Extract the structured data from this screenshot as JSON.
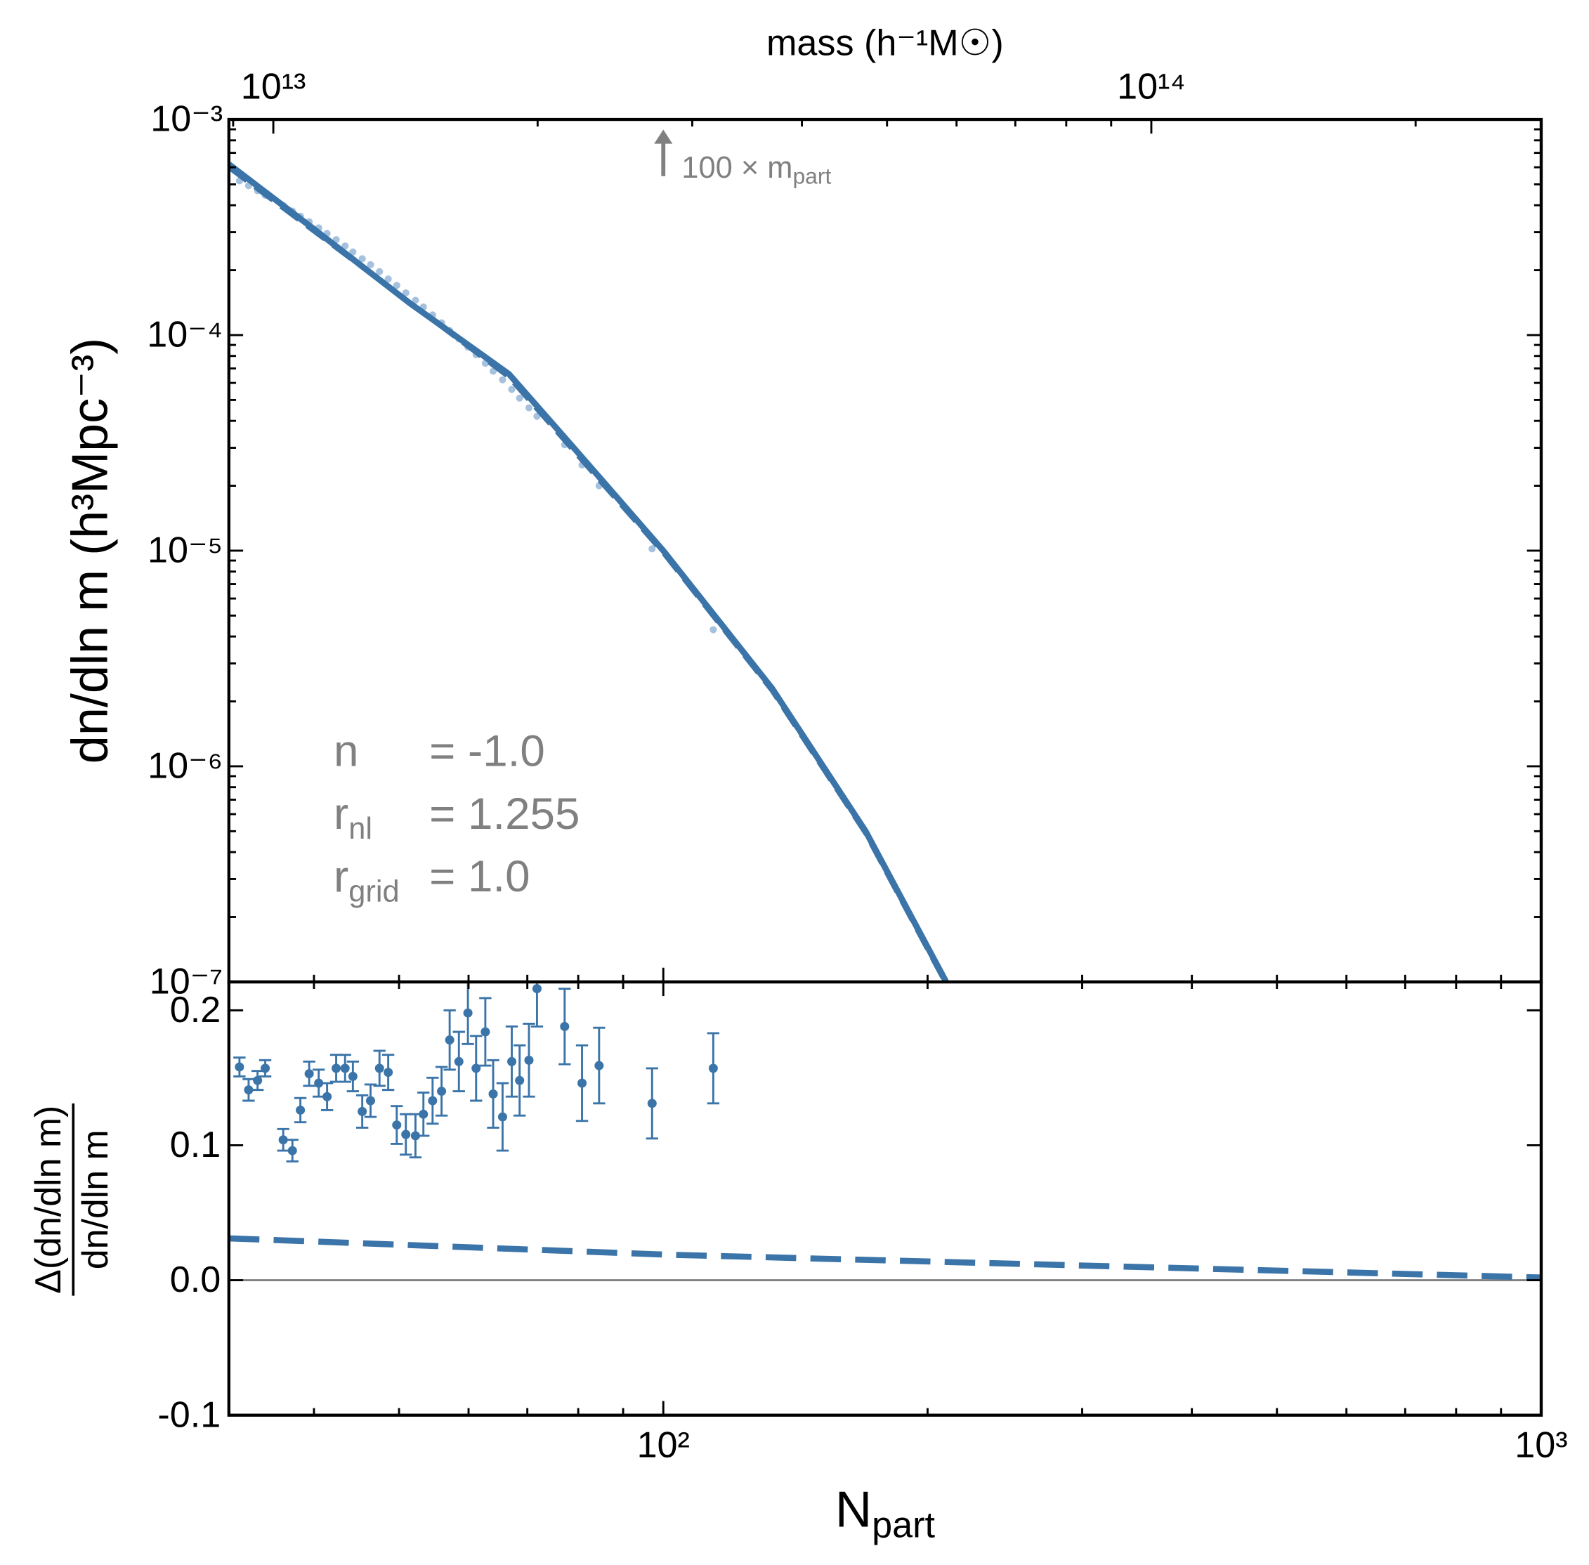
{
  "chart_data": [
    {
      "type": "line",
      "ylabel": "dn/dln m (h³Mpc⁻³)",
      "x2label": "mass (h⁻¹M☉)",
      "xscale": "log",
      "yscale": "log",
      "xlim": [
        32,
        1000
      ],
      "ylim": [
        1e-07,
        0.001
      ],
      "yticks": [
        {
          "value": 0.001,
          "label": "10⁻³"
        },
        {
          "value": 0.0001,
          "label": "10⁻⁴"
        },
        {
          "value": 1e-05,
          "label": "10⁻⁵"
        },
        {
          "value": 1e-06,
          "label": "10⁻⁶"
        },
        {
          "value": 1e-07,
          "label": "10⁻⁷"
        }
      ],
      "x2lim": [
        8900000000000.0,
        278000000000000.0
      ],
      "x2ticks": [
        {
          "value": 10000000000000.0,
          "label": "10¹³"
        },
        {
          "value": 100000000000000.0,
          "label": "10¹⁴"
        }
      ],
      "series": [
        {
          "kind": "scatter",
          "color": "#8fb2d4",
          "x": [
            32.9,
            33.7,
            34.5,
            35.2,
            36.9,
            37.8,
            38.6,
            39.5,
            40.5,
            41.4,
            42.4,
            43.4,
            44.3,
            45.4,
            46.4,
            47.5,
            48.6,
            49.7,
            50.9,
            52.2,
            53.3,
            54.6,
            55.9,
            57.1,
            58.5,
            59.9,
            61.2,
            62.7,
            64.0,
            65.6,
            67.2,
            68.6,
            70.3,
            71.8,
            77.2,
            80.8,
            84.5,
            97.1,
            114.0
          ],
          "values": [
            0.000519,
            0.000493,
            0.000467,
            0.000445,
            0.000399,
            0.000376,
            0.000356,
            0.000335,
            0.000314,
            0.000296,
            0.000277,
            0.000259,
            0.000243,
            0.000226,
            0.000212,
            0.000197,
            0.000182,
            0.00017,
            0.000157,
            0.000145,
            0.000135,
            0.000124,
            0.000114,
            0.000105,
            9.6e-05,
            8.8e-05,
            8.1e-05,
            7.4e-05,
            6.8e-05,
            6.2e-05,
            5.6e-05,
            5.1e-05,
            4.6e-05,
            4.2e-05,
            3.1e-05,
            2.5e-05,
            2e-05,
            1.02e-05,
            4.3e-06
          ]
        },
        {
          "kind": "dashed",
          "color": "#3b74a8",
          "x": [
            32,
            66.7,
            100,
            133,
            170,
            210
          ],
          "values": [
            0.0006,
            6.4e-05,
            9.8e-06,
            2.25e-06,
            4.9e-07,
            9.8e-08
          ]
        },
        {
          "kind": "solid",
          "color": "#3b74a8",
          "x": [
            32,
            40,
            51.5,
            66.7,
            80,
            100,
            133,
            170,
            210
          ],
          "values": [
            0.00062,
            0.00031,
            0.00014,
            6.6e-05,
            2.84e-05,
            1e-05,
            2.3e-06,
            5e-07,
            1e-07
          ]
        }
      ],
      "arrow": {
        "x": 100,
        "text": "100 × m",
        "sub": "part"
      },
      "annotations": [
        {
          "symbol": "n",
          "value": "= -1.0"
        },
        {
          "symbol": "r",
          "sub": "nl",
          "value": "= 1.255"
        },
        {
          "symbol": "r",
          "sub": "grid",
          "value": "= 1.0"
        }
      ]
    },
    {
      "type": "errorbar",
      "xlabel": {
        "text": "N",
        "sub": "part"
      },
      "ylabel": {
        "numerator": "Δ(dn/dln m)",
        "denominator": "dn/dln m"
      },
      "xscale": "log",
      "xlim": [
        32,
        1000
      ],
      "ylim": [
        -0.1,
        0.221
      ],
      "xticks": [
        {
          "value": 100,
          "label": "10²"
        },
        {
          "value": 1000,
          "label": "10³"
        }
      ],
      "yticks": [
        -0.1,
        {
          "value": 0,
          "label": "0.0"
        },
        0.1,
        0.2
      ],
      "reference_line": 0,
      "series": [
        {
          "kind": "errorbar",
          "color": "#3b74a8",
          "x": [
            32.9,
            33.7,
            34.5,
            35.2,
            36.9,
            37.8,
            38.6,
            39.5,
            40.5,
            41.4,
            42.4,
            43.4,
            44.3,
            45.4,
            46.4,
            47.5,
            48.6,
            49.7,
            50.9,
            52.2,
            53.3,
            54.6,
            55.9,
            57.1,
            58.5,
            59.9,
            61.2,
            62.7,
            64.0,
            65.6,
            67.2,
            68.6,
            70.3,
            71.8,
            77.2,
            80.8,
            84.5,
            97.1,
            114.0
          ],
          "values": [
            0.158,
            0.141,
            0.148,
            0.157,
            0.104,
            0.096,
            0.126,
            0.153,
            0.146,
            0.136,
            0.157,
            0.157,
            0.151,
            0.125,
            0.133,
            0.157,
            0.154,
            0.115,
            0.108,
            0.107,
            0.123,
            0.133,
            0.14,
            0.178,
            0.162,
            0.198,
            0.157,
            0.184,
            0.138,
            0.121,
            0.162,
            0.148,
            0.163,
            0.216,
            0.188,
            0.146,
            0.159,
            0.131,
            0.157
          ],
          "errors": [
            0.007,
            0.008,
            0.007,
            0.006,
            0.008,
            0.008,
            0.009,
            0.009,
            0.01,
            0.01,
            0.01,
            0.01,
            0.011,
            0.012,
            0.012,
            0.013,
            0.013,
            0.014,
            0.015,
            0.016,
            0.016,
            0.017,
            0.018,
            0.022,
            0.022,
            0.023,
            0.024,
            0.025,
            0.025,
            0.025,
            0.026,
            0.026,
            0.027,
            0.028,
            0.028,
            0.028,
            0.028,
            0.026,
            0.026
          ]
        },
        {
          "kind": "dashed",
          "color": "#3b74a8",
          "x": [
            32,
            100,
            1000
          ],
          "values": [
            0.031,
            0.019,
            0.002
          ]
        }
      ]
    }
  ]
}
